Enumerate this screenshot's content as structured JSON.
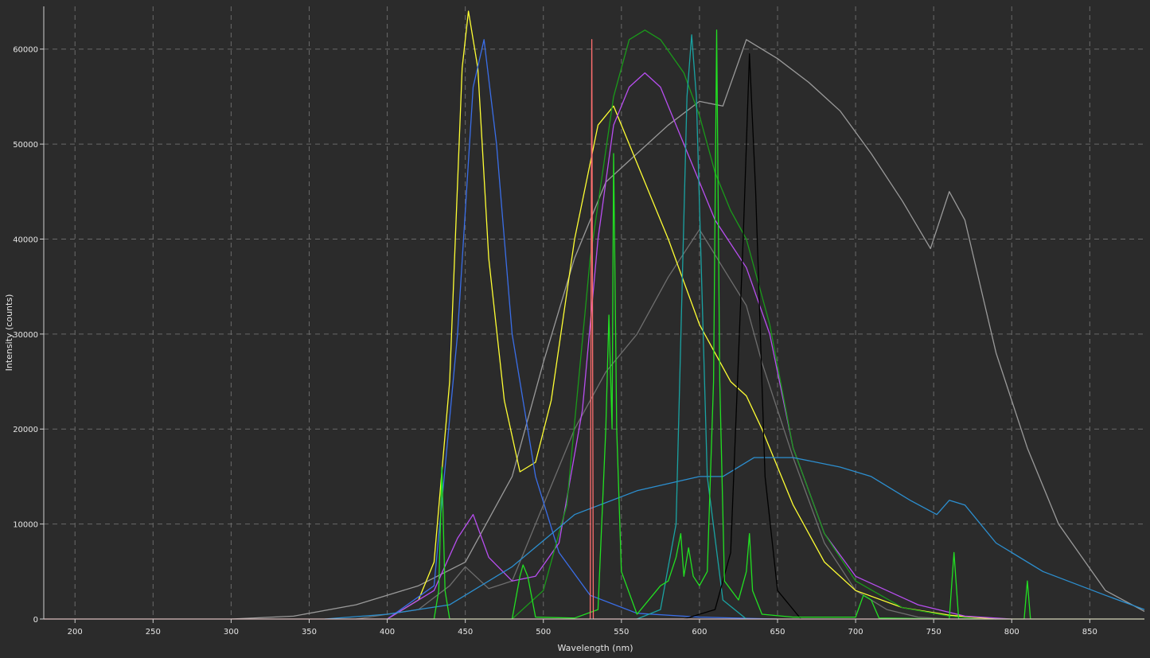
{
  "chart_data": {
    "type": "line",
    "xlabel": "Wavelength (nm)",
    "ylabel": "Intensity (counts)",
    "xlim": [
      180,
      885
    ],
    "ylim": [
      0,
      64500
    ],
    "x_ticks": [
      200,
      250,
      300,
      350,
      400,
      450,
      500,
      550,
      600,
      650,
      700,
      750,
      800,
      850
    ],
    "y_ticks": [
      0,
      10000,
      20000,
      30000,
      40000,
      50000,
      60000
    ],
    "grid": true,
    "series": [
      {
        "color": "#9a9a9a",
        "points": [
          [
            300,
            0
          ],
          [
            340,
            300
          ],
          [
            380,
            1500
          ],
          [
            420,
            3500
          ],
          [
            450,
            6000
          ],
          [
            480,
            15000
          ],
          [
            500,
            27000
          ],
          [
            520,
            38000
          ],
          [
            540,
            46000
          ],
          [
            560,
            49000
          ],
          [
            580,
            52000
          ],
          [
            600,
            54500
          ],
          [
            615,
            54000
          ],
          [
            630,
            61000
          ],
          [
            650,
            59000
          ],
          [
            670,
            56500
          ],
          [
            690,
            53500
          ],
          [
            710,
            49000
          ],
          [
            730,
            44000
          ],
          [
            748,
            39000
          ],
          [
            760,
            45000
          ],
          [
            770,
            42000
          ],
          [
            790,
            28000
          ],
          [
            810,
            18000
          ],
          [
            830,
            10000
          ],
          [
            860,
            3000
          ],
          [
            885,
            800
          ]
        ]
      },
      {
        "color": "#6e6e6e",
        "points": [
          [
            380,
            0
          ],
          [
            420,
            1000
          ],
          [
            440,
            3500
          ],
          [
            450,
            5500
          ],
          [
            465,
            3200
          ],
          [
            480,
            4000
          ],
          [
            500,
            12000
          ],
          [
            520,
            20000
          ],
          [
            540,
            26000
          ],
          [
            560,
            30000
          ],
          [
            580,
            36000
          ],
          [
            600,
            41000
          ],
          [
            615,
            37000
          ],
          [
            630,
            33000
          ],
          [
            640,
            27000
          ],
          [
            660,
            17000
          ],
          [
            680,
            8000
          ],
          [
            700,
            3000
          ],
          [
            720,
            1000
          ],
          [
            740,
            200
          ],
          [
            760,
            0
          ]
        ]
      },
      {
        "color": "#ffff33",
        "points": [
          [
            400,
            0
          ],
          [
            420,
            2000
          ],
          [
            430,
            6000
          ],
          [
            440,
            25000
          ],
          [
            448,
            58000
          ],
          [
            452,
            64000
          ],
          [
            458,
            58000
          ],
          [
            465,
            38000
          ],
          [
            475,
            23000
          ],
          [
            485,
            15500
          ],
          [
            495,
            16500
          ],
          [
            505,
            23000
          ],
          [
            520,
            40000
          ],
          [
            535,
            52000
          ],
          [
            545,
            54000
          ],
          [
            560,
            48000
          ],
          [
            580,
            40000
          ],
          [
            600,
            31000
          ],
          [
            620,
            25000
          ],
          [
            630,
            23500
          ],
          [
            640,
            20000
          ],
          [
            660,
            12000
          ],
          [
            680,
            6000
          ],
          [
            700,
            3000
          ],
          [
            730,
            1200
          ],
          [
            760,
            400
          ],
          [
            790,
            0
          ]
        ]
      },
      {
        "color": "#3a6ee8",
        "points": [
          [
            400,
            0
          ],
          [
            430,
            3500
          ],
          [
            445,
            30000
          ],
          [
            455,
            56000
          ],
          [
            462,
            61000
          ],
          [
            470,
            50000
          ],
          [
            480,
            30000
          ],
          [
            495,
            15000
          ],
          [
            510,
            7000
          ],
          [
            530,
            2500
          ],
          [
            560,
            600
          ],
          [
            600,
            200
          ],
          [
            650,
            0
          ]
        ]
      },
      {
        "color": "#b84ef0",
        "points": [
          [
            400,
            0
          ],
          [
            430,
            3000
          ],
          [
            445,
            8500
          ],
          [
            455,
            11000
          ],
          [
            465,
            6500
          ],
          [
            480,
            4000
          ],
          [
            495,
            4500
          ],
          [
            510,
            8000
          ],
          [
            525,
            22000
          ],
          [
            535,
            40000
          ],
          [
            545,
            52000
          ],
          [
            555,
            56000
          ],
          [
            565,
            57500
          ],
          [
            575,
            56000
          ],
          [
            585,
            52000
          ],
          [
            600,
            46000
          ],
          [
            610,
            42000
          ],
          [
            620,
            39500
          ],
          [
            630,
            37000
          ],
          [
            645,
            30000
          ],
          [
            660,
            18000
          ],
          [
            680,
            9000
          ],
          [
            700,
            4500
          ],
          [
            740,
            1500
          ],
          [
            770,
            300
          ],
          [
            800,
            0
          ]
        ]
      },
      {
        "color": "#1a9a1a",
        "points": [
          [
            480,
            0
          ],
          [
            500,
            3000
          ],
          [
            515,
            12000
          ],
          [
            530,
            38000
          ],
          [
            545,
            55000
          ],
          [
            555,
            61000
          ],
          [
            565,
            62000
          ],
          [
            575,
            61000
          ],
          [
            590,
            57500
          ],
          [
            600,
            53000
          ],
          [
            610,
            47000
          ],
          [
            620,
            43000
          ],
          [
            630,
            40000
          ],
          [
            645,
            31000
          ],
          [
            660,
            18000
          ],
          [
            680,
            9000
          ],
          [
            700,
            4000
          ],
          [
            730,
            1200
          ],
          [
            760,
            300
          ],
          [
            780,
            0
          ]
        ]
      },
      {
        "color": "#2c8fd0",
        "points": [
          [
            360,
            0
          ],
          [
            400,
            500
          ],
          [
            440,
            1500
          ],
          [
            480,
            5500
          ],
          [
            520,
            11000
          ],
          [
            560,
            13500
          ],
          [
            600,
            15000
          ],
          [
            615,
            15000
          ],
          [
            635,
            17000
          ],
          [
            660,
            17000
          ],
          [
            690,
            16000
          ],
          [
            710,
            15000
          ],
          [
            735,
            12500
          ],
          [
            752,
            11000
          ],
          [
            760,
            12500
          ],
          [
            770,
            12000
          ],
          [
            790,
            8000
          ],
          [
            820,
            5000
          ],
          [
            860,
            2500
          ],
          [
            885,
            1000
          ]
        ]
      },
      {
        "color": "#1aa3a3",
        "points": [
          [
            560,
            0
          ],
          [
            575,
            1000
          ],
          [
            585,
            10000
          ],
          [
            592,
            55000
          ],
          [
            595,
            61500
          ],
          [
            598,
            55000
          ],
          [
            605,
            15000
          ],
          [
            615,
            2000
          ],
          [
            630,
            0
          ]
        ]
      },
      {
        "color": "#000000",
        "points": [
          [
            590,
            0
          ],
          [
            610,
            1000
          ],
          [
            620,
            7000
          ],
          [
            628,
            40000
          ],
          [
            632,
            59500
          ],
          [
            636,
            45000
          ],
          [
            642,
            15000
          ],
          [
            650,
            3000
          ],
          [
            665,
            0
          ]
        ]
      },
      {
        "color": "#22e022",
        "points": [
          [
            400,
            0
          ],
          [
            430,
            0
          ],
          [
            433,
            3000
          ],
          [
            435,
            16000
          ],
          [
            437,
            3000
          ],
          [
            440,
            0
          ],
          [
            480,
            0
          ],
          [
            485,
            4500
          ],
          [
            487,
            5700
          ],
          [
            490,
            4500
          ],
          [
            495,
            200
          ],
          [
            520,
            100
          ],
          [
            535,
            1000
          ],
          [
            540,
            20000
          ],
          [
            542,
            32000
          ],
          [
            544,
            20000
          ],
          [
            545,
            49000
          ],
          [
            547,
            20000
          ],
          [
            550,
            5000
          ],
          [
            560,
            500
          ],
          [
            575,
            3500
          ],
          [
            580,
            4000
          ],
          [
            585,
            6500
          ],
          [
            588,
            9000
          ],
          [
            590,
            4500
          ],
          [
            593,
            7500
          ],
          [
            596,
            4500
          ],
          [
            600,
            3500
          ],
          [
            605,
            5000
          ],
          [
            609,
            25000
          ],
          [
            611,
            62000
          ],
          [
            613,
            25000
          ],
          [
            616,
            4000
          ],
          [
            625,
            2000
          ],
          [
            630,
            5000
          ],
          [
            632,
            9000
          ],
          [
            634,
            3000
          ],
          [
            640,
            500
          ],
          [
            660,
            200
          ],
          [
            700,
            200
          ],
          [
            705,
            2500
          ],
          [
            710,
            2000
          ],
          [
            715,
            100
          ],
          [
            760,
            0
          ],
          [
            763,
            7000
          ],
          [
            766,
            0
          ],
          [
            808,
            0
          ],
          [
            810,
            4000
          ],
          [
            812,
            0
          ],
          [
            885,
            0
          ]
        ]
      },
      {
        "color": "#ff6f6f",
        "points": [
          [
            180,
            0
          ],
          [
            530,
            0
          ],
          [
            531,
            61000
          ],
          [
            532,
            0
          ],
          [
            885,
            0
          ]
        ]
      }
    ]
  }
}
